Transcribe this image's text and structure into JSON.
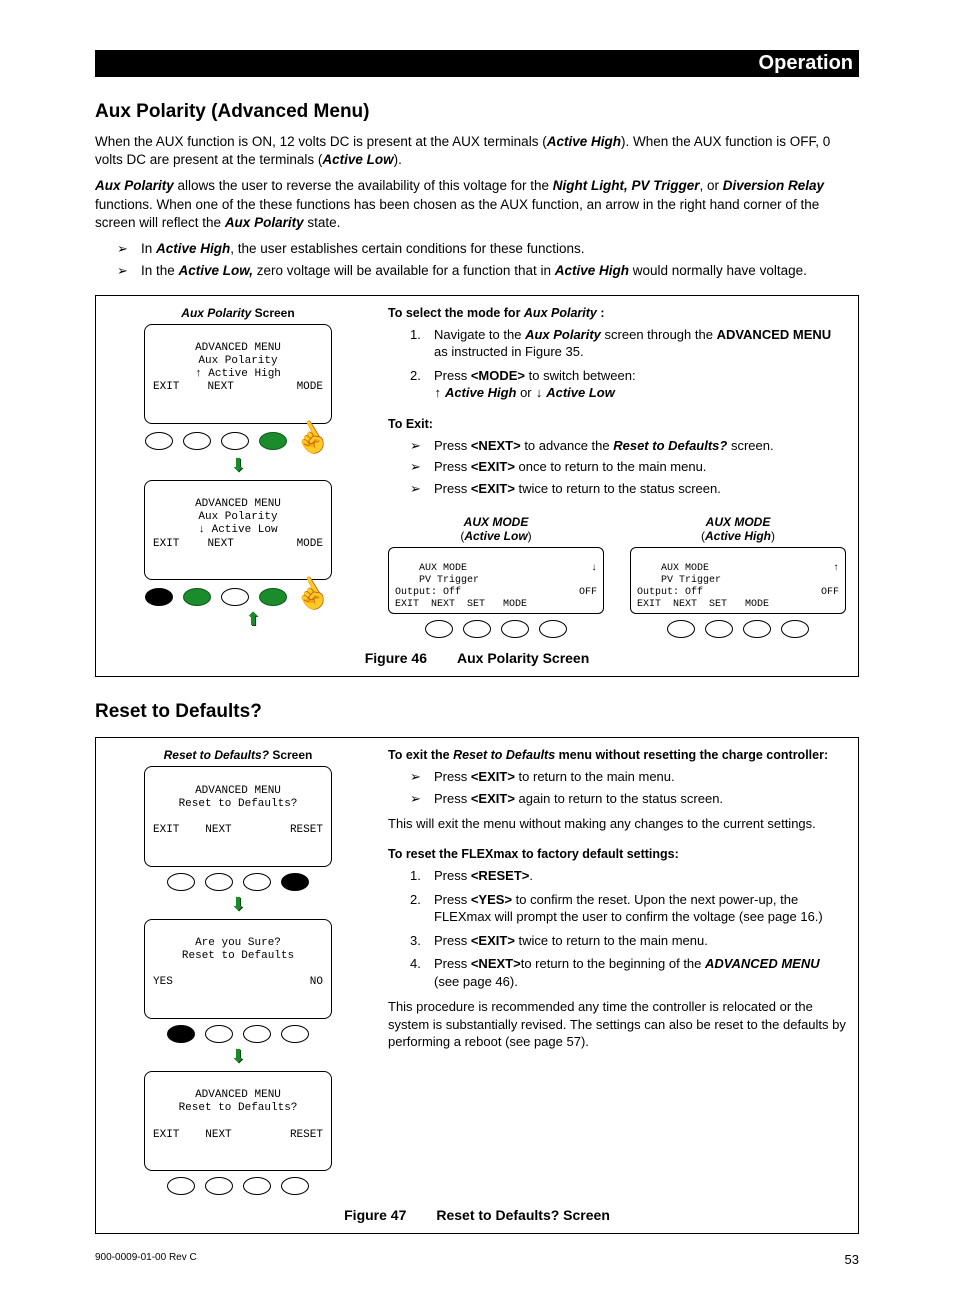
{
  "header": {
    "section": "Operation"
  },
  "section1": {
    "title": "Aux Polarity (Advanced Menu)",
    "p1_a": "When the AUX function is ON, 12 volts DC is present at the AUX terminals (",
    "p1_b": "Active High",
    "p1_c": "). When the AUX function is OFF, 0 volts DC are present at the terminals (",
    "p1_d": "Active Low",
    "p1_e": ").",
    "p2_a": "Aux Polarity",
    "p2_b": " allows the user to reverse the availability of this voltage for the ",
    "p2_c": "Night Light, PV Trigger",
    "p2_d": ", or ",
    "p2_e": "Diversion Relay",
    "p2_f": " functions.   When one of the these functions has been chosen as the AUX function, an arrow in the right hand corner of the screen will reflect the ",
    "p2_g": "Aux Polarity",
    "p2_h": " state.",
    "b1_a": "In ",
    "b1_b": "Active High",
    "b1_c": ", the user establishes certain conditions for these functions.",
    "b2_a": "In the ",
    "b2_b": "Active Low,",
    "b2_c": " zero voltage will be available for a function that in ",
    "b2_d": "Active High",
    "b2_e": " would normally have voltage."
  },
  "fig46": {
    "screen_title_i": "Aux Polarity",
    "screen_title_r": " Screen",
    "lcd1": {
      "l1": "ADVANCED MENU",
      "l2": "Aux Polarity",
      "l3": "↑ Active High",
      "bl": "EXIT",
      "bm": "NEXT",
      "br": "MODE"
    },
    "lcd2": {
      "l1": "ADVANCED MENU",
      "l2": "Aux Polarity",
      "l3": "↓ Active Low",
      "bl": "EXIT",
      "bm": "NEXT",
      "br": "MODE"
    },
    "instr_heading_a": "To select the mode for ",
    "instr_heading_b": "Aux Polarity",
    "instr_heading_c": " :",
    "step1_a": "Navigate to the ",
    "step1_b": "Aux Polarity",
    "step1_c": " screen through the ",
    "step1_d": "ADVANCED MENU",
    "step1_e": " as instructed in Figure 35.",
    "step2_a": "Press ",
    "step2_b": "<MODE>",
    "step2_c": " to switch between:",
    "step2_line2_a": "↑",
    "step2_line2_b": " Active High",
    "step2_line2_c": " or ",
    "step2_line2_d": "↓",
    "step2_line2_e": " Active Low",
    "exit_heading": "To Exit:",
    "exit1_a": "Press ",
    "exit1_b": "<NEXT>",
    "exit1_c": " to advance the ",
    "exit1_d": "Reset to Defaults?",
    "exit1_e": " screen.",
    "exit2_a": "Press ",
    "exit2_b": "<EXIT>",
    "exit2_c": " once to return to the main menu.",
    "exit3_a": "Press ",
    "exit3_b": "<EXIT>",
    "exit3_c": " twice to return to the status screen.",
    "aux_low_title": "AUX MODE",
    "aux_low_sub_a": "(",
    "aux_low_sub_b": "Active Low",
    "aux_low_sub_c": ")",
    "aux_high_title": "AUX MODE",
    "aux_high_sub_a": "(",
    "aux_high_sub_b": "Active High",
    "aux_high_sub_c": ")",
    "aux_lcd_low": {
      "r1l": "    AUX MODE",
      "r1r": "↓",
      "r2": "    PV Trigger",
      "r3l": "Output: Off",
      "r3r": "OFF",
      "r4": "EXIT  NEXT  SET   MODE"
    },
    "aux_lcd_high": {
      "r1l": "    AUX MODE",
      "r1r": "↑",
      "r2": "    PV Trigger",
      "r3l": "Output: Off",
      "r3r": "OFF",
      "r4": "EXIT  NEXT  SET   MODE"
    },
    "caption_fig": "Figure 46",
    "caption_text": "Aux Polarity Screen"
  },
  "section2": {
    "title": "Reset to Defaults?"
  },
  "fig47": {
    "screen_title_i": "Reset to Defaults?",
    "screen_title_r": " Screen",
    "lcd1": {
      "l1": "ADVANCED MENU",
      "l2": "Reset to Defaults?",
      "l3": " ",
      "bl": "EXIT",
      "bm": "NEXT",
      "br": "RESET"
    },
    "lcd2": {
      "l1": "Are you Sure?",
      "l2": "Reset to Defaults",
      "l3": " ",
      "bl": "YES",
      "bm": " ",
      "br": "NO"
    },
    "lcd3": {
      "l1": "ADVANCED MENU",
      "l2": "Reset to Defaults?",
      "l3": " ",
      "bl": "EXIT",
      "bm": "NEXT",
      "br": "RESET"
    },
    "head1_a": "To exit the ",
    "head1_b": "Reset to Defaults",
    "head1_c": " menu without resetting the charge controller:",
    "e1_a": "Press ",
    "e1_b": "<EXIT>",
    "e1_c": " to return to the main menu.",
    "e2_a": "Press ",
    "e2_b": "<EXIT>",
    "e2_c": " again to return to the status screen.",
    "p_after": "This will exit the menu without making any changes to the current settings.",
    "head2": "To reset the FLEXmax to factory default settings:",
    "s1_a": "Press ",
    "s1_b": "<RESET>",
    "s1_c": ".",
    "s2_a": "Press ",
    "s2_b": "<YES>",
    "s2_c": " to confirm the reset.  Upon the next power-up, the FLEXmax will prompt the user to confirm the voltage (see page 16.)",
    "s3_a": "Press ",
    "s3_b": "<EXIT>",
    "s3_c": " twice to return to the main menu.",
    "s4_a": "Press ",
    "s4_b": "<NEXT>",
    "s4_c": "to return to the beginning of the ",
    "s4_d": "ADVANCED MENU",
    "s4_e": " (see page 46).",
    "p_end": "This procedure is recommended any time the controller is relocated or the system is substantially revised.  The settings can also be reset to the defaults by performing a reboot (see page 57).",
    "caption_fig": "Figure 47",
    "caption_text": "Reset to Defaults? Screen"
  },
  "footer": {
    "rev": "900-0009-01-00 Rev C",
    "page": "53"
  },
  "colors": {
    "green": "#1a8c2b"
  }
}
